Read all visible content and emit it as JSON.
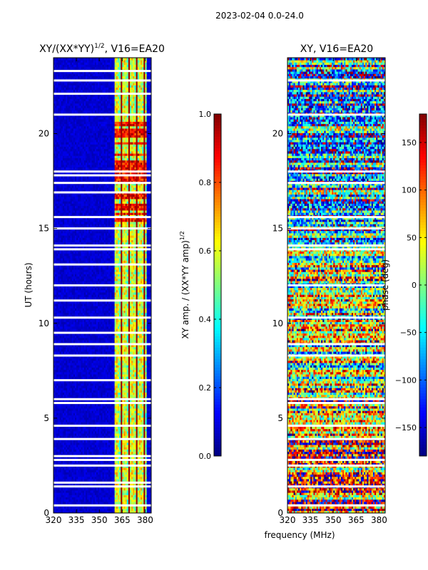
{
  "figure": {
    "suptitle": "2023-02-04 0.0-24.0",
    "shared_xlabel": "frequency (MHz)"
  },
  "chart_data": [
    {
      "type": "heatmap",
      "title_main": "XY/(XX*YY)",
      "title_sup": "1/2",
      "title_tail": ", V16=EA20",
      "xlabel": "",
      "ylabel": "UT (hours)",
      "xlim": [
        320,
        384
      ],
      "ylim": [
        0,
        24
      ],
      "xticks": [
        320,
        335,
        350,
        365,
        380
      ],
      "yticks": [
        0,
        5,
        10,
        15,
        20
      ],
      "colormap": "jet",
      "colorbar": {
        "label_main": "XY amp. / (XX*YY amp)",
        "label_sup": "1/2",
        "range": [
          0.0,
          1.0
        ],
        "ticks": [
          "0.0",
          "0.2",
          "0.4",
          "0.6",
          "0.8",
          "1.0"
        ]
      },
      "description_values": {
        "background_value": 0.05,
        "active_band_mhz": [
          360,
          381
        ],
        "active_band_value_range": [
          0.35,
          0.75
        ],
        "hot_hours": [
          15.2,
          20.6
        ],
        "hot_value_range": [
          0.75,
          0.98
        ],
        "flag_gap_hours": [
          0.4,
          1.4,
          1.6,
          2.5,
          2.8,
          3.0,
          3.9,
          4.6,
          5.8,
          6.0,
          7.0,
          8.3,
          8.9,
          9.5,
          10.3,
          11.2,
          12.0,
          13.1,
          13.9,
          14.1,
          15.0,
          15.6,
          16.9,
          17.4,
          17.8,
          18.0,
          21.0,
          22.1,
          22.8,
          23.3
        ]
      }
    },
    {
      "type": "heatmap",
      "title_main": "XY, V16=EA20",
      "xlabel": "frequency (MHz)",
      "ylabel": "",
      "xlim": [
        320,
        384
      ],
      "ylim": [
        0,
        24
      ],
      "xticks": [
        320,
        335,
        350,
        365,
        380
      ],
      "yticks": [
        0,
        5,
        10,
        15,
        20
      ],
      "colormap": "jet",
      "colorbar": {
        "label_main": "phase (deg)",
        "range": [
          -180,
          180
        ],
        "ticks": [
          "−150",
          "−100",
          "−50",
          "0",
          "50",
          "100",
          "150"
        ]
      },
      "description_values": {
        "phase_range_deg": [
          -180,
          180
        ],
        "noisy_phase_hours": [
          0,
          24
        ],
        "flag_gap_hours": [
          0.4,
          1.4,
          2.5,
          2.8,
          3.9,
          4.6,
          5.8,
          6.0,
          8.3,
          8.9,
          10.3,
          12.0,
          13.9,
          14.1,
          15.0,
          15.6,
          17.4,
          18.0,
          21.0,
          22.8
        ]
      }
    }
  ]
}
